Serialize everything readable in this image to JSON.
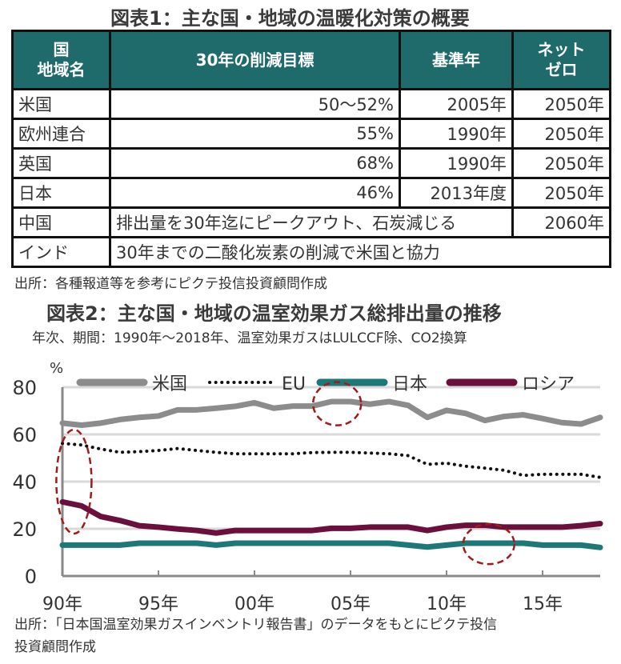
{
  "table1": {
    "title": "図表1：主な国・地域の温暖化対策の概要",
    "headers": [
      "国\n地域名",
      "30年の削減目標",
      "基準年",
      "ネット\nゼロ"
    ],
    "header_lines": {
      "h0a": "国",
      "h0b": "地域名",
      "h3a": "ネット",
      "h3b": "ゼロ"
    },
    "rows": [
      {
        "country": "米国",
        "target": "50～52%",
        "base": "2005年",
        "netzero": "2050年"
      },
      {
        "country": "欧州連合",
        "target": "55%",
        "base": "1990年",
        "netzero": "2050年"
      },
      {
        "country": "英国",
        "target": "68%",
        "base": "1990年",
        "netzero": "2050年"
      },
      {
        "country": "日本",
        "target": "46%",
        "base": "2013年度",
        "netzero": "2050年"
      },
      {
        "country": "中国",
        "target": "排出量を30年迄にピークアウト、石炭減じる",
        "netzero": "2060年"
      },
      {
        "country": "インド",
        "target": "30年までの二酸化炭素の削減で米国と協力"
      }
    ],
    "source": "出所：各種報道等を参考にピクテ投信投資顧問作成"
  },
  "chart_data": {
    "type": "line",
    "title": "図表2：主な国・地域の温室効果ガス総排出量の推移",
    "subtitle": "年次、期間：1990年～2018年、温室効果ガスはLULCCF除、CO2換算",
    "ylabel": "%",
    "ylim": [
      0,
      80
    ],
    "yticks": [
      "0",
      "20",
      "40",
      "60",
      "80"
    ],
    "xlim": [
      1990,
      2018
    ],
    "xticks": [
      {
        "year": 1990,
        "label": "90年"
      },
      {
        "year": 1995,
        "label": "95年"
      },
      {
        "year": 2000,
        "label": "00年"
      },
      {
        "year": 2005,
        "label": "05年"
      },
      {
        "year": 2010,
        "label": "10年"
      },
      {
        "year": 2015,
        "label": "15年"
      }
    ],
    "x": [
      1990,
      1991,
      1992,
      1993,
      1994,
      1995,
      1996,
      1997,
      1998,
      1999,
      2000,
      2001,
      2002,
      2003,
      2004,
      2005,
      2006,
      2007,
      2008,
      2009,
      2010,
      2011,
      2012,
      2013,
      2014,
      2015,
      2016,
      2017,
      2018
    ],
    "series": [
      {
        "name": "米国",
        "color": "#8c8c8c",
        "style": "solid",
        "values": [
          64.8,
          63.9,
          64.8,
          66.3,
          67.2,
          67.8,
          70.4,
          70.4,
          71.1,
          71.9,
          73.4,
          71.1,
          72,
          72,
          73.9,
          73.9,
          72.8,
          73.9,
          72.3,
          67.2,
          70.2,
          68.9,
          65.9,
          67.6,
          68.3,
          66.7,
          65,
          64.4,
          67.2
        ]
      },
      {
        "name": "EU",
        "color": "#111111",
        "style": "dotted",
        "values": [
          56.2,
          55.5,
          53.8,
          52.4,
          52.7,
          53.2,
          54,
          53.2,
          52.4,
          51.8,
          51.8,
          51.8,
          51.8,
          52.3,
          52.4,
          52.4,
          52.1,
          51.8,
          51,
          47.3,
          47.8,
          46.5,
          45.7,
          44.8,
          42.6,
          43.1,
          43.1,
          43.1,
          41.8
        ]
      },
      {
        "name": "日本",
        "color": "#1e7878",
        "style": "solid",
        "values": [
          13.1,
          13.1,
          13.1,
          13.1,
          13.9,
          13.9,
          13.9,
          13.9,
          13.1,
          13.9,
          13.9,
          13.9,
          13.9,
          13.9,
          13.9,
          13.9,
          13.9,
          13.9,
          13.1,
          12.3,
          13.1,
          13.9,
          13.9,
          13.9,
          13.9,
          13.1,
          13.1,
          13.1,
          12.1
        ]
      },
      {
        "name": "ロシア",
        "color": "#6b0f3c",
        "style": "solid",
        "values": [
          31.4,
          29.7,
          25.2,
          23.5,
          21.3,
          20.7,
          19.9,
          19.3,
          18.2,
          19.3,
          19.3,
          19.3,
          19.3,
          19.3,
          20.2,
          20.2,
          20.7,
          20.7,
          20.7,
          19.3,
          20.7,
          21.5,
          21.5,
          20.7,
          20.7,
          20.7,
          20.7,
          21.3,
          22.2
        ]
      }
    ],
    "annotations": [
      {
        "type": "ellipse",
        "x": 1990.6,
        "y": 40
      },
      {
        "type": "ellipse",
        "x": 2004.3,
        "y": 73
      },
      {
        "type": "ellipse",
        "x": 2012.2,
        "y": 13.5
      }
    ],
    "grid": true,
    "legend": "top",
    "source_line1": "出所：「日本国温室効果ガスインベントリ報告書」のデータをもとにピクテ投信",
    "source_line2": "投資顧問作成"
  }
}
